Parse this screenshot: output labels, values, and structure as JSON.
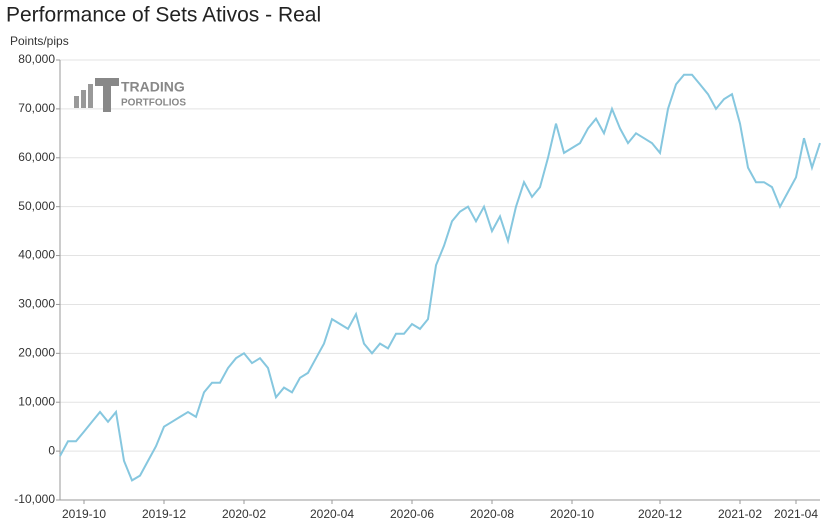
{
  "chart_data": {
    "type": "line",
    "title": "Performance of Sets Ativos - Real",
    "y_label": "Points/pips",
    "logo": [
      "TRADING",
      "PORTFOLIOS"
    ],
    "categories": [
      null,
      null,
      null,
      "2019-10",
      null,
      null,
      null,
      null,
      null,
      null,
      null,
      null,
      null,
      "2019-12",
      null,
      null,
      null,
      null,
      null,
      null,
      null,
      null,
      null,
      "2020-02",
      null,
      null,
      null,
      null,
      null,
      null,
      null,
      null,
      null,
      null,
      "2020-04",
      null,
      null,
      null,
      null,
      null,
      null,
      null,
      null,
      null,
      "2020-06",
      null,
      null,
      null,
      null,
      null,
      null,
      null,
      null,
      null,
      "2020-08",
      null,
      null,
      null,
      null,
      null,
      null,
      null,
      null,
      null,
      "2020-10",
      null,
      null,
      null,
      null,
      null,
      null,
      null,
      null,
      null,
      null,
      "2020-12",
      null,
      null,
      null,
      null,
      null,
      null,
      null,
      null,
      null,
      "2021-02",
      null,
      null,
      null,
      null,
      null,
      null,
      "2021-04",
      null,
      null,
      null
    ],
    "series": [
      {
        "name": "Real",
        "color": "#86c7df",
        "values": [
          -1000,
          2000,
          2000,
          4000,
          6000,
          8000,
          6000,
          8000,
          -2000,
          -6000,
          -5000,
          -2000,
          1000,
          5000,
          6000,
          7000,
          8000,
          7000,
          12000,
          14000,
          14000,
          17000,
          19000,
          20000,
          18000,
          19000,
          17000,
          11000,
          13000,
          12000,
          15000,
          16000,
          19000,
          22000,
          27000,
          26000,
          25000,
          28000,
          22000,
          20000,
          22000,
          21000,
          24000,
          24000,
          26000,
          25000,
          27000,
          38000,
          42000,
          47000,
          49000,
          50000,
          47000,
          50000,
          45000,
          48000,
          43000,
          50000,
          55000,
          52000,
          54000,
          60000,
          67000,
          61000,
          62000,
          63000,
          66000,
          68000,
          65000,
          70000,
          66000,
          63000,
          65000,
          64000,
          63000,
          61000,
          70000,
          75000,
          77000,
          77000,
          75000,
          73000,
          70000,
          72000,
          73000,
          67000,
          58000,
          55000,
          55000,
          54000,
          50000,
          53000,
          56000,
          64000,
          58000,
          63000
        ]
      }
    ],
    "ylim": [
      -10000,
      80000
    ],
    "yticks": [
      {
        "value": -10000,
        "label": "-10,000"
      },
      0,
      {
        "value": 10000,
        "label": "10,000"
      },
      {
        "value": 20000,
        "label": "20,000"
      },
      {
        "value": 30000,
        "label": "30,000"
      },
      {
        "value": 40000,
        "label": "40,000"
      },
      {
        "value": 50000,
        "label": "50,000"
      },
      {
        "value": 60000,
        "label": "60,000"
      },
      {
        "value": 70000,
        "label": "70,000"
      },
      {
        "value": 80000,
        "label": "80,000"
      }
    ],
    "grid": true
  }
}
